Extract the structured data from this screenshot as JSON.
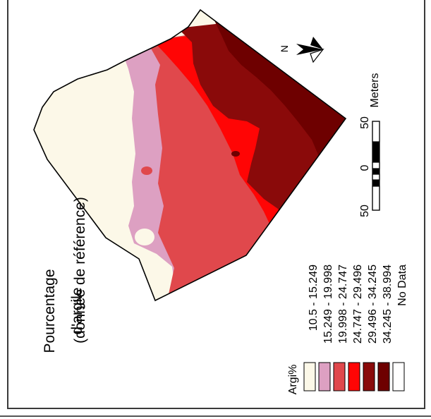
{
  "map": {
    "title_lines": [
      "Pourcentage",
      "d'argile",
      "(donnée de référence)"
    ]
  },
  "legend": {
    "heading": "Argi%",
    "classes": [
      {
        "label": "10.5 - 15.249",
        "color": "#fcf8e8"
      },
      {
        "label": "15.249 - 19.998",
        "color": "#dda0c2"
      },
      {
        "label": "19.998 - 24.747",
        "color": "#e0484c"
      },
      {
        "label": "24.747 - 29.496",
        "color": "#ff0505"
      },
      {
        "label": "29.496 - 34.245",
        "color": "#8a0a0a"
      },
      {
        "label": "34.245 - 38.994",
        "color": "#6e0000"
      },
      {
        "label": "No Data",
        "color": "#ffffff"
      }
    ]
  },
  "scalebar": {
    "unit_label": "Meters",
    "tick_labels": [
      "50",
      "0",
      "50"
    ]
  },
  "north_arrow": {
    "label": "N"
  }
}
